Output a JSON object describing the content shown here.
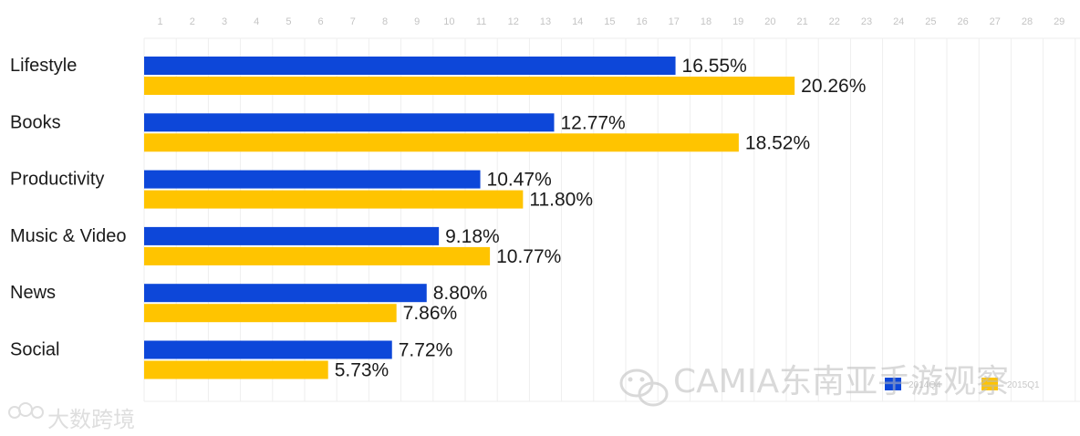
{
  "chart_data": {
    "type": "bar",
    "orientation": "horizontal",
    "title": "",
    "xlabel": "",
    "ylabel": "",
    "top_ticks": [
      "1",
      "2",
      "3",
      "4",
      "5",
      "6",
      "7",
      "8",
      "9",
      "10",
      "11",
      "12",
      "13",
      "14",
      "15",
      "16",
      "17",
      "18",
      "19",
      "20",
      "21",
      "22",
      "23",
      "24",
      "25",
      "26",
      "27",
      "28",
      "29"
    ],
    "categories": [
      "Lifestyle",
      "Books",
      "Productivity",
      "Music & Video",
      "News",
      "Social"
    ],
    "series": [
      {
        "name": "2014Q4",
        "color": "#0d47d9",
        "values": [
          16.55,
          12.77,
          10.47,
          9.18,
          8.8,
          7.72
        ],
        "labels": [
          "16.55%",
          "12.77%",
          "10.47%",
          "9.18%",
          "8.80%",
          "7.72%"
        ]
      },
      {
        "name": "2015Q1",
        "color": "#ffc400",
        "values": [
          20.26,
          18.52,
          11.8,
          10.77,
          7.86,
          5.73
        ],
        "labels": [
          "20.26%",
          "18.52%",
          "11.80%",
          "10.77%",
          "7.86%",
          "5.73%"
        ]
      }
    ],
    "xlim": [
      0,
      29
    ],
    "grid": true,
    "legend_position": "bottom-right"
  },
  "watermarks": {
    "center": "CAMIA东南亚手游观察",
    "bottom_left": "大数跨境",
    "icon_center": "wechat-icon",
    "icon_left": "cloud-logo-icon"
  }
}
